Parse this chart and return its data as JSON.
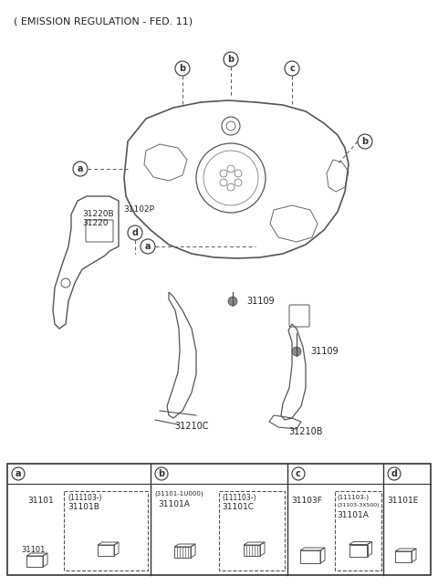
{
  "title": "( EMISSION REGULATION - FED. 11)",
  "bg_color": "#ffffff",
  "label_a": "a",
  "label_b": "b",
  "label_c": "c",
  "label_d": "d",
  "part_31220B": "31220B",
  "part_31220": "31220",
  "part_31102P": "31102P",
  "part_31109": "31109",
  "part_31210C": "31210C",
  "part_31210B": "31210B",
  "parts_table": {
    "col_a": {
      "label": "a",
      "items": [
        {
          "code": "31101",
          "has_dashed": false
        },
        {
          "code": "31101B",
          "sub": "(111103-)",
          "has_dashed": true
        }
      ]
    },
    "col_b": {
      "label": "b",
      "items": [
        {
          "code": "31101A",
          "sub": "(31101-1U000)",
          "has_dashed": false
        },
        {
          "code": "31101C",
          "sub": "(111103-)",
          "has_dashed": true
        }
      ]
    },
    "col_c": {
      "label": "c",
      "items": [
        {
          "code": "31103F",
          "has_dashed": false
        },
        {
          "code": "31101A",
          "sub1": "(111103-)",
          "sub2": "(31103-3X500)",
          "has_dashed": true
        }
      ]
    },
    "col_d": {
      "label": "d",
      "items": [
        {
          "code": "31101E",
          "has_dashed": false
        }
      ]
    }
  }
}
